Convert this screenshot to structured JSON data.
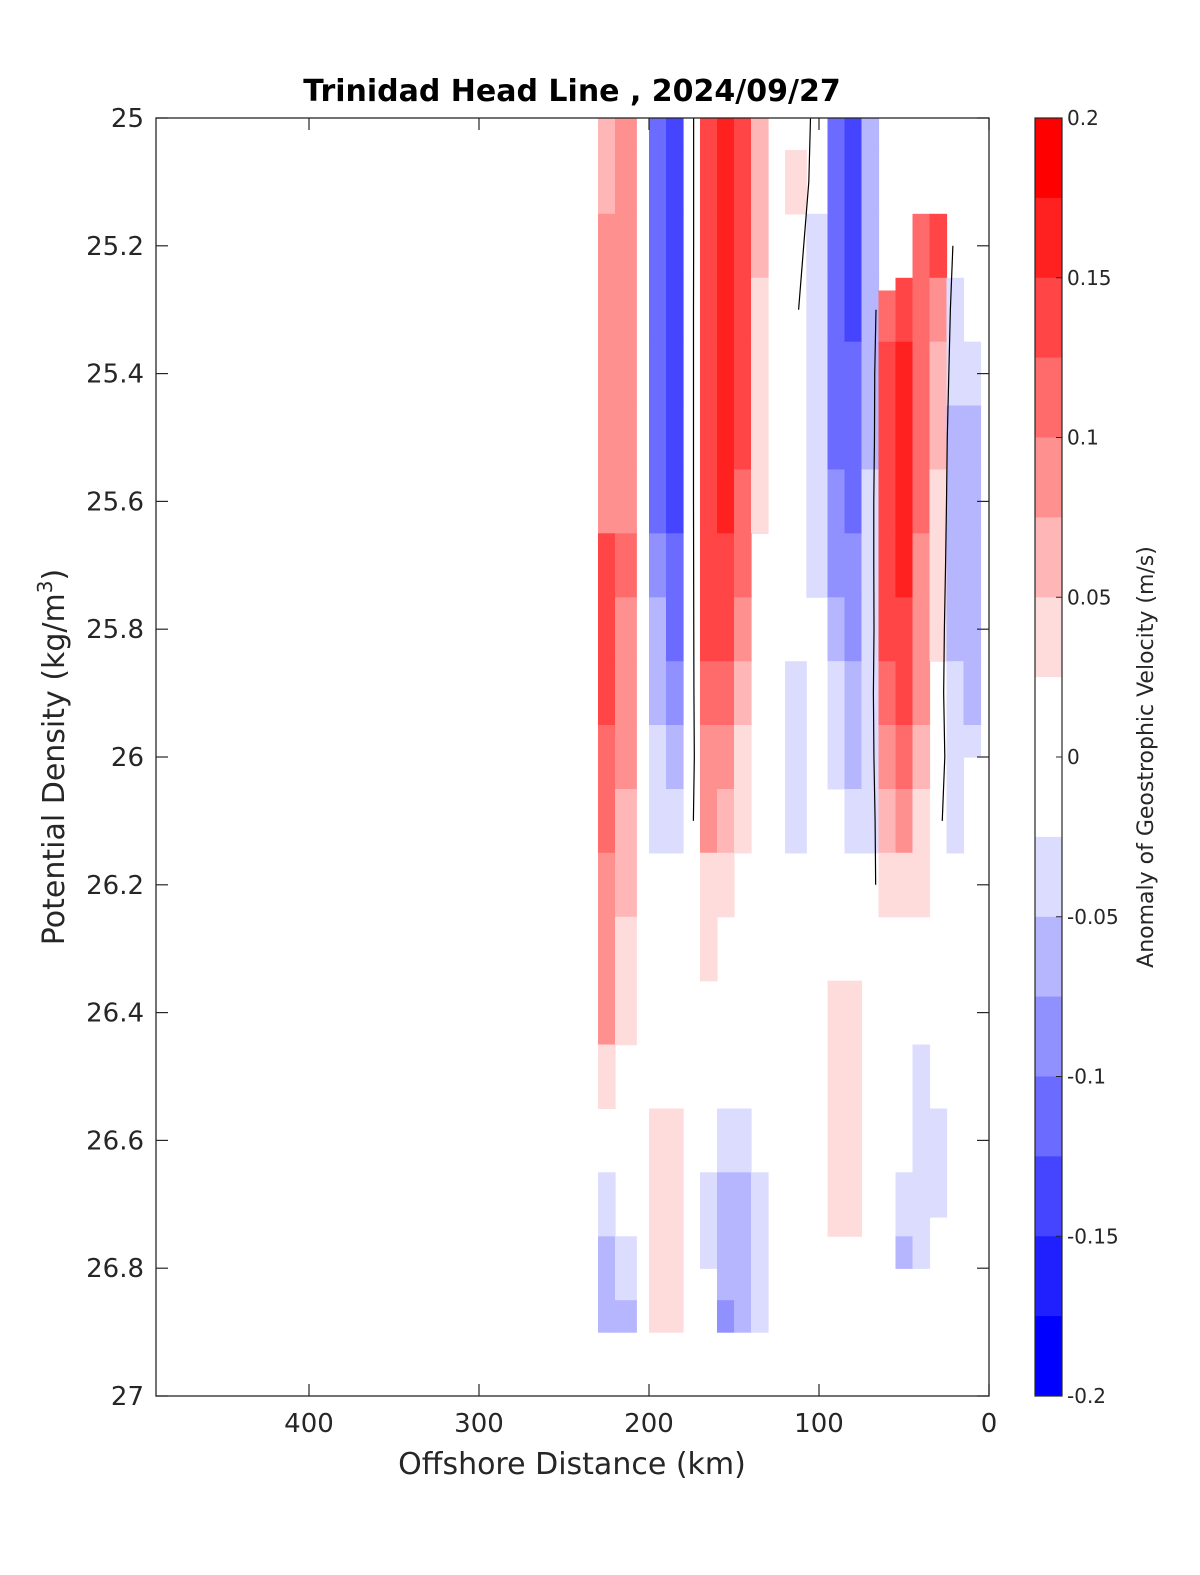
{
  "chart_data": {
    "type": "heatmap",
    "title": "Trinidad Head Line , 2024/09/27",
    "xlabel": "Offshore Distance (km)",
    "ylabel": "Potential Density (kg/m",
    "ylabel_sup": "3",
    "ylabel_close": ")",
    "colorbar_label": "Anomaly of Geostrophic Velocity (m/s)",
    "xlim": [
      490,
      0
    ],
    "ylim": [
      25,
      27
    ],
    "x_reversed": true,
    "y_reversed": true,
    "x_ticks": [
      400,
      300,
      200,
      100,
      0
    ],
    "x_tick_labels": [
      "400",
      "300",
      "200",
      "100",
      "0"
    ],
    "y_ticks": [
      25,
      25.2,
      25.4,
      25.6,
      25.8,
      26,
      26.2,
      26.4,
      26.6,
      26.8,
      27
    ],
    "y_tick_labels": [
      "25",
      "25.2",
      "25.4",
      "25.6",
      "25.8",
      "26",
      "26.2",
      "26.4",
      "26.6",
      "26.8",
      "27"
    ],
    "colorbar_ticks": [
      0.2,
      0.15,
      0.1,
      0.05,
      0,
      -0.05,
      -0.1,
      -0.15,
      -0.2
    ],
    "colorbar_tick_labels": [
      "0.2",
      "0.15",
      "0.1",
      "0.05",
      "0",
      "-0.05",
      "-0.1",
      "-0.15",
      "-0.2"
    ],
    "color_levels": [
      "#ff0000",
      "#ff2020",
      "#ff4545",
      "#ff6b6b",
      "#ff9090",
      "#ffb6b6",
      "#ffdcdc",
      "#ffffff",
      "#ffffff",
      "#dcdcff",
      "#b6b6ff",
      "#9090ff",
      "#6b6bff",
      "#4545ff",
      "#2020ff",
      "#0000ff"
    ],
    "x": [
      230,
      210,
      205,
      195,
      185,
      175,
      165,
      155,
      145,
      135,
      125,
      115,
      100,
      90,
      80,
      70,
      60,
      50,
      40,
      30,
      20,
      10
    ],
    "y": [
      25,
      25.1,
      25.2,
      25.3,
      25.4,
      25.5,
      25.6,
      25.7,
      25.8,
      25.9,
      26,
      26.1,
      26.2,
      26.3,
      26.4,
      26.5,
      26.6,
      26.7,
      26.8,
      26.9
    ],
    "bottom_depth": [
      26.9,
      26.9,
      26.9,
      26.9,
      26.9,
      26.88,
      26.8,
      26.9,
      26.9,
      26.9,
      26.9,
      26.9,
      26.9,
      26.9,
      26.9,
      26.9,
      26.8,
      26.8,
      26.8,
      26.72,
      26.2,
      26.0
    ],
    "top_depth": [
      25,
      25,
      25,
      25,
      25,
      25,
      25,
      25,
      25,
      25,
      25,
      25,
      25,
      25,
      25,
      25,
      25.27,
      25.25,
      25.15,
      25.15,
      25.2,
      25.3
    ],
    "velocity": [
      [
        0.06,
        0.09,
        0.0,
        -0.1,
        -0.13,
        -0.02,
        0.14,
        0.17,
        0.14,
        0.06,
        0.0,
        0.02,
        -0.01,
        -0.12,
        -0.13,
        -0.06,
        0.0,
        0.0,
        0.0,
        0.0,
        0.0,
        0.0
      ],
      [
        0.07,
        0.09,
        0.0,
        -0.11,
        -0.14,
        -0.02,
        0.14,
        0.17,
        0.14,
        0.06,
        0.0,
        0.03,
        -0.02,
        -0.12,
        -0.14,
        -0.07,
        0.0,
        0.0,
        0.0,
        0.0,
        0.0,
        0.0
      ],
      [
        0.08,
        0.09,
        0.0,
        -0.11,
        -0.15,
        -0.02,
        0.14,
        0.17,
        0.14,
        0.06,
        0.0,
        0.02,
        -0.03,
        -0.12,
        -0.14,
        -0.07,
        0.0,
        0.0,
        0.12,
        0.14,
        -0.02,
        0.0
      ],
      [
        0.08,
        0.09,
        0.0,
        -0.11,
        -0.15,
        -0.02,
        0.15,
        0.17,
        0.14,
        0.05,
        0.0,
        0.01,
        -0.04,
        -0.12,
        -0.13,
        -0.06,
        0.11,
        0.14,
        0.12,
        0.08,
        -0.03,
        -0.02
      ],
      [
        0.08,
        0.09,
        0.0,
        -0.11,
        -0.15,
        -0.02,
        0.15,
        0.17,
        0.13,
        0.05,
        0.0,
        0.0,
        -0.04,
        -0.11,
        -0.12,
        -0.05,
        0.13,
        0.17,
        0.12,
        0.07,
        -0.04,
        -0.04
      ],
      [
        0.09,
        0.09,
        0.0,
        -0.11,
        -0.14,
        -0.02,
        0.15,
        0.17,
        0.13,
        0.04,
        0.0,
        0.0,
        -0.04,
        -0.1,
        -0.11,
        -0.05,
        0.14,
        0.17,
        0.12,
        0.06,
        -0.05,
        -0.05
      ],
      [
        0.1,
        0.1,
        0.0,
        -0.1,
        -0.13,
        -0.02,
        0.15,
        0.16,
        0.12,
        0.03,
        0.0,
        -0.01,
        -0.04,
        -0.09,
        -0.1,
        -0.04,
        0.14,
        0.17,
        0.11,
        0.05,
        -0.05,
        -0.06
      ],
      [
        0.14,
        0.11,
        0.0,
        -0.09,
        -0.12,
        -0.02,
        0.14,
        0.15,
        0.11,
        0.02,
        0.0,
        -0.02,
        -0.04,
        -0.08,
        -0.09,
        -0.04,
        0.14,
        0.16,
        0.1,
        0.04,
        -0.05,
        -0.06
      ],
      [
        0.14,
        0.1,
        0.0,
        -0.07,
        -0.1,
        -0.02,
        0.13,
        0.13,
        0.09,
        0.02,
        0.0,
        -0.02,
        -0.02,
        -0.06,
        -0.08,
        -0.04,
        0.13,
        0.15,
        0.09,
        0.03,
        -0.05,
        -0.06
      ],
      [
        0.13,
        0.09,
        0.0,
        -0.05,
        -0.08,
        -0.02,
        0.12,
        0.11,
        0.07,
        0.01,
        0.0,
        -0.03,
        -0.01,
        -0.04,
        -0.06,
        -0.03,
        0.12,
        0.13,
        0.08,
        0.02,
        -0.04,
        -0.06
      ],
      [
        0.12,
        0.08,
        0.0,
        -0.04,
        -0.06,
        -0.02,
        0.1,
        0.08,
        0.05,
        0.01,
        0.0,
        -0.03,
        0.0,
        -0.03,
        -0.05,
        -0.03,
        0.1,
        0.11,
        0.06,
        0.02,
        -0.03,
        -0.04
      ],
      [
        0.11,
        0.07,
        0.0,
        -0.03,
        -0.04,
        -0.01,
        0.08,
        0.06,
        0.04,
        0.0,
        0.0,
        -0.03,
        0.0,
        -0.01,
        -0.03,
        -0.03,
        0.07,
        0.08,
        0.05,
        0.01,
        -0.03,
        -0.03
      ],
      [
        0.1,
        0.06,
        0.0,
        0.0,
        0.0,
        0.0,
        0.05,
        0.04,
        0.02,
        0.0,
        0.0,
        -0.01,
        0.0,
        0.0,
        -0.01,
        -0.02,
        0.04,
        0.05,
        0.03,
        0.0,
        0.0,
        0.0
      ],
      [
        0.09,
        0.05,
        0.0,
        0.0,
        0.0,
        0.0,
        0.03,
        0.02,
        0.01,
        0.0,
        0.0,
        0.0,
        0.0,
        0.02,
        0.0,
        0.0,
        0.02,
        0.02,
        0.01,
        0.0,
        0.0,
        0.0
      ],
      [
        0.08,
        0.04,
        0.0,
        0.0,
        0.0,
        0.0,
        0.01,
        0.0,
        0.0,
        0.0,
        0.0,
        0.0,
        0.01,
        0.04,
        0.04,
        0.02,
        0.0,
        0.0,
        0.0,
        0.0,
        0.0,
        0.0
      ],
      [
        0.05,
        0.02,
        0.0,
        0.02,
        0.01,
        0.0,
        0.0,
        -0.01,
        0.0,
        0.0,
        0.0,
        0.0,
        0.01,
        0.05,
        0.05,
        0.02,
        0.0,
        -0.01,
        -0.03,
        -0.02,
        0.0,
        0.0
      ],
      [
        0.0,
        0.0,
        0.0,
        0.04,
        0.04,
        0.0,
        -0.02,
        -0.03,
        -0.03,
        -0.01,
        0.0,
        0.0,
        0.0,
        0.04,
        0.04,
        0.01,
        0.0,
        -0.02,
        -0.04,
        -0.03,
        0.0,
        0.0
      ],
      [
        -0.04,
        -0.02,
        0.0,
        0.04,
        0.04,
        0.0,
        -0.04,
        -0.05,
        -0.05,
        -0.03,
        0.0,
        0.0,
        0.0,
        0.03,
        0.03,
        0.0,
        -0.01,
        -0.04,
        -0.04,
        -0.03,
        0.0,
        0.0
      ],
      [
        -0.05,
        -0.03,
        0.0,
        0.04,
        0.04,
        0.0,
        -0.04,
        -0.07,
        -0.06,
        -0.04,
        0.0,
        0.0,
        0.0,
        0.0,
        0.0,
        0.0,
        -0.02,
        -0.05,
        -0.04,
        -0.01,
        0.0,
        0.0
      ],
      [
        -0.07,
        -0.05,
        0.0,
        0.04,
        0.03,
        0.0,
        -0.05,
        -0.09,
        -0.07,
        -0.04,
        0.0,
        0.0,
        0.0,
        0.0,
        0.0,
        0.0,
        -0.02,
        -0.04,
        -0.02,
        0.0,
        0.0,
        0.0
      ]
    ]
  }
}
